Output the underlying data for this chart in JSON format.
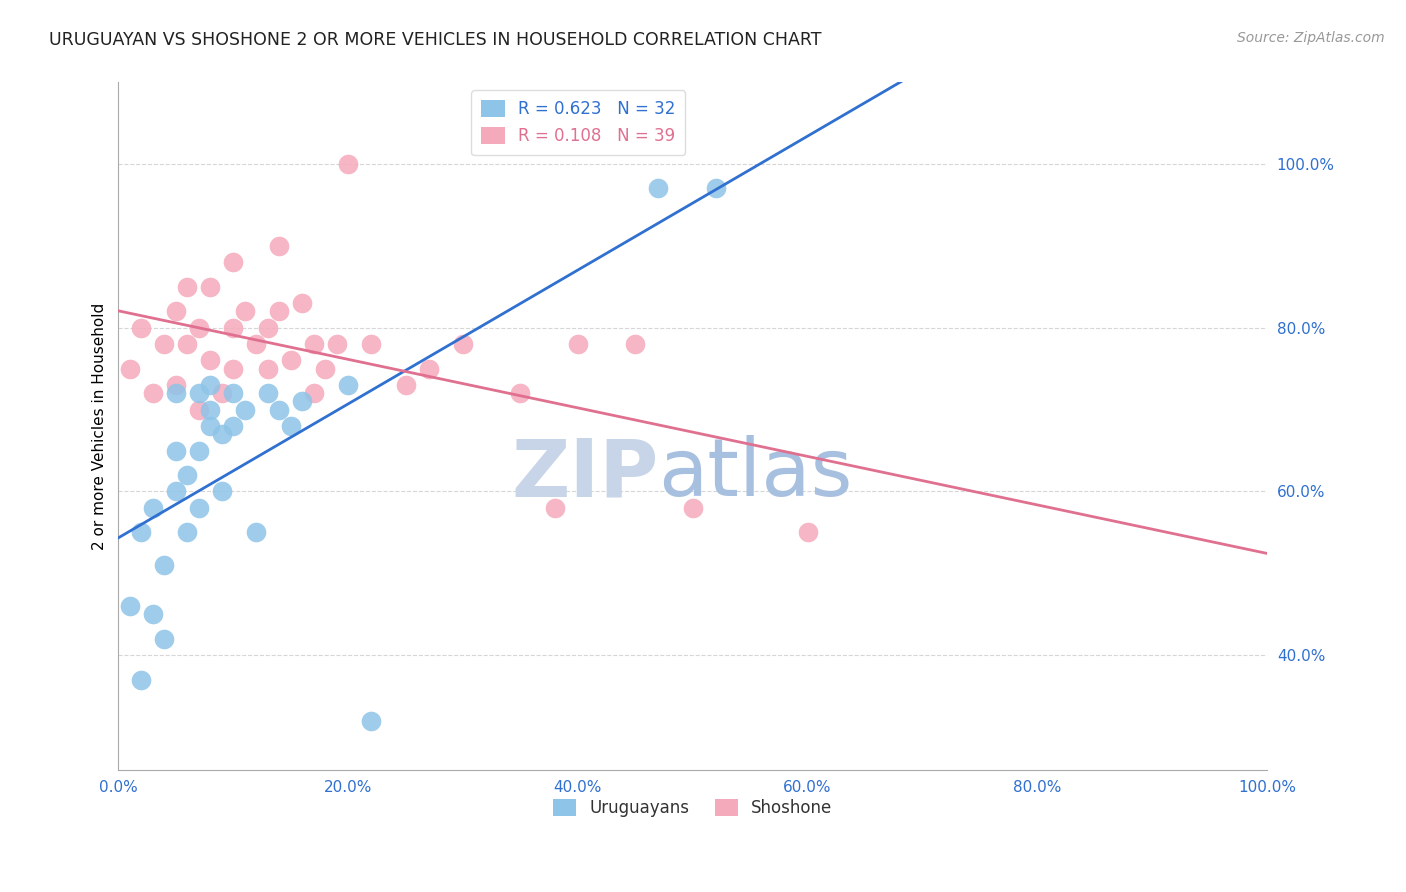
{
  "title": "URUGUAYAN VS SHOSHONE 2 OR MORE VEHICLES IN HOUSEHOLD CORRELATION CHART",
  "source": "Source: ZipAtlas.com",
  "ylabel": "2 or more Vehicles in Household",
  "xlabel_ticks": [
    "0.0%",
    "20.0%",
    "40.0%",
    "60.0%",
    "80.0%",
    "100.0%"
  ],
  "ylabel_ticks": [
    "40.0%",
    "60.0%",
    "80.0%",
    "100.0%"
  ],
  "xlim": [
    0.0,
    1.0
  ],
  "ylim": [
    0.26,
    1.1
  ],
  "uruguayan_R": 0.623,
  "uruguayan_N": 32,
  "shoshone_R": 0.108,
  "shoshone_N": 39,
  "blue_color": "#8EC4E8",
  "pink_color": "#F5AABB",
  "blue_line_color": "#3070D0",
  "pink_line_color": "#E07090",
  "legend_blue_text_color": "#3070D0",
  "legend_pink_text_color": "#E07090",
  "watermark_zip_color": "#C8D8EE",
  "watermark_atlas_color": "#B0C8E8",
  "uruguayan_x": [
    0.01,
    0.02,
    0.02,
    0.03,
    0.03,
    0.04,
    0.04,
    0.05,
    0.05,
    0.05,
    0.06,
    0.06,
    0.07,
    0.07,
    0.07,
    0.08,
    0.08,
    0.08,
    0.09,
    0.09,
    0.1,
    0.1,
    0.11,
    0.12,
    0.13,
    0.14,
    0.15,
    0.16,
    0.2,
    0.22,
    0.47,
    0.52
  ],
  "uruguayan_y": [
    0.46,
    0.55,
    0.37,
    0.45,
    0.58,
    0.42,
    0.51,
    0.6,
    0.65,
    0.72,
    0.55,
    0.62,
    0.58,
    0.65,
    0.72,
    0.68,
    0.7,
    0.73,
    0.6,
    0.67,
    0.72,
    0.68,
    0.7,
    0.55,
    0.72,
    0.7,
    0.68,
    0.71,
    0.73,
    0.32,
    0.97,
    0.97
  ],
  "shoshone_x": [
    0.01,
    0.02,
    0.03,
    0.04,
    0.05,
    0.05,
    0.06,
    0.06,
    0.07,
    0.07,
    0.08,
    0.08,
    0.09,
    0.1,
    0.1,
    0.1,
    0.11,
    0.12,
    0.13,
    0.13,
    0.14,
    0.14,
    0.15,
    0.16,
    0.17,
    0.17,
    0.18,
    0.19,
    0.2,
    0.22,
    0.25,
    0.27,
    0.3,
    0.35,
    0.38,
    0.4,
    0.45,
    0.5,
    0.6
  ],
  "shoshone_y": [
    0.75,
    0.8,
    0.72,
    0.78,
    0.73,
    0.82,
    0.78,
    0.85,
    0.7,
    0.8,
    0.76,
    0.85,
    0.72,
    0.75,
    0.8,
    0.88,
    0.82,
    0.78,
    0.8,
    0.75,
    0.82,
    0.9,
    0.76,
    0.83,
    0.78,
    0.72,
    0.75,
    0.78,
    1.0,
    0.78,
    0.73,
    0.75,
    0.78,
    0.72,
    0.58,
    0.78,
    0.78,
    0.58,
    0.55
  ]
}
